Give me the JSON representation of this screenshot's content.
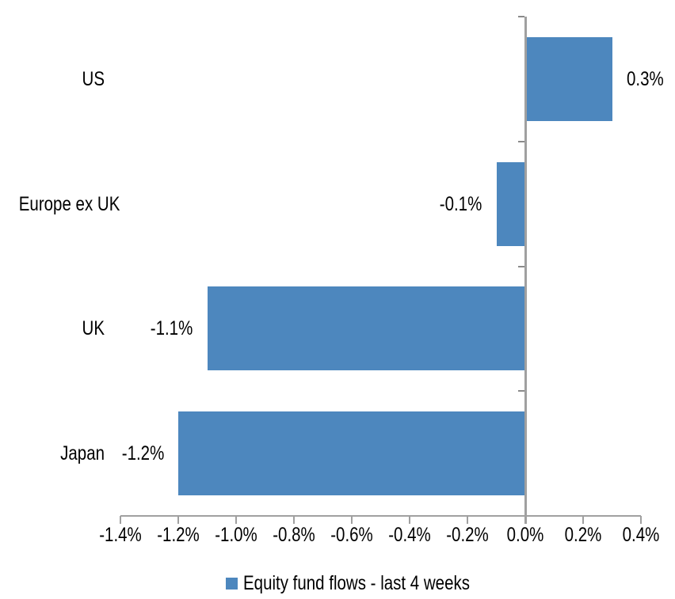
{
  "chart_data": {
    "type": "bar",
    "orientation": "horizontal",
    "title": "",
    "xlabel": "",
    "ylabel": "",
    "categories": [
      "US",
      "Europe ex UK",
      "UK",
      "Japan"
    ],
    "series": [
      {
        "name": "Equity fund flows - last 4 weeks",
        "values": [
          0.3,
          -0.1,
          -1.1,
          -1.2
        ],
        "data_labels": [
          "0.3%",
          "-0.1%",
          "-1.1%",
          "-1.2%"
        ]
      }
    ],
    "xlim": [
      -1.4,
      0.4
    ],
    "x_tick_labels": [
      "-1.4%",
      "-1.2%",
      "-1.0%",
      "-0.8%",
      "-0.6%",
      "-0.4%",
      "-0.2%",
      "0.0%",
      "0.2%",
      "0.4%"
    ],
    "x_tick_step": 0.2,
    "grid": false,
    "legend_position": "bottom",
    "colors": {
      "bar": "#4D87BE",
      "axis": "#A0A0A0",
      "category_tick": "#8A8A8A",
      "text": "#000000",
      "background": "#FFFFFF"
    }
  }
}
